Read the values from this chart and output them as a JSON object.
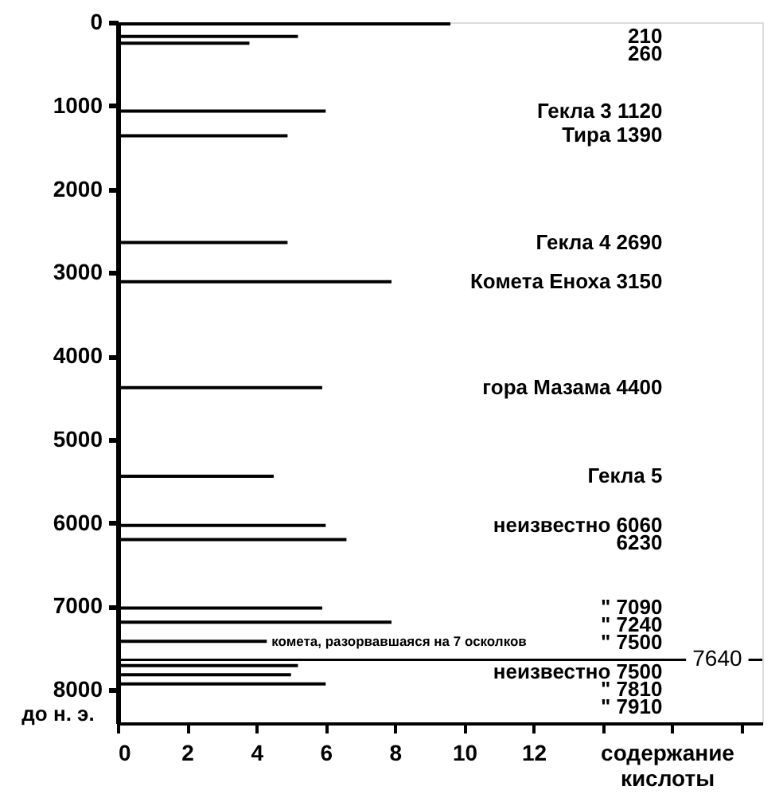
{
  "chart_data": {
    "type": "bar",
    "orientation": "horizontal",
    "color": "#000000",
    "x": [
      20,
      170,
      250,
      1065,
      1360,
      2640,
      3110,
      4380,
      5440,
      6030,
      6200,
      7020,
      7190,
      7420,
      7710,
      7820,
      7930
    ],
    "values": [
      9.6,
      5.2,
      3.8,
      6.0,
      4.9,
      4.9,
      7.9,
      5.9,
      4.5,
      6.0,
      6.6,
      5.9,
      7.9,
      4.3,
      5.2,
      5.0,
      6.0
    ],
    "xlim": [
      0,
      18.6
    ],
    "ylim": [
      8400,
      0
    ],
    "xticks": [
      0,
      2,
      4,
      6,
      8,
      10,
      12,
      {
        "value": 14,
        "label": null
      },
      {
        "value": 16,
        "label": null
      },
      {
        "value": 18,
        "label": null
      }
    ],
    "yticks": [
      0,
      1000,
      2000,
      3000,
      4000,
      5000,
      6000,
      7000,
      8000
    ],
    "xlabel": "содержание кислоты",
    "ylabel": "до н. э.",
    "grid": false,
    "ref_lines": [
      {
        "axis": "y",
        "value": 7640,
        "label": "7640",
        "color": "#000000"
      }
    ],
    "annotations": [
      "210",
      "260",
      "Гекла 3 1120",
      "Тира 1390",
      "Гекла 4 2690",
      "Комета Еноха 3150",
      "гора Мазама 4400",
      "Гекла 5",
      "неизвестно 6060",
      "6230",
      "\" 7090",
      "\" 7240",
      "\" 7500",
      {
        "text": "комета, разорвавшаяся на 7 осколков",
        "x": 4.3,
        "y": 7420
      },
      "неизвестно 7500",
      "\" 7810",
      "\" 7910"
    ]
  }
}
